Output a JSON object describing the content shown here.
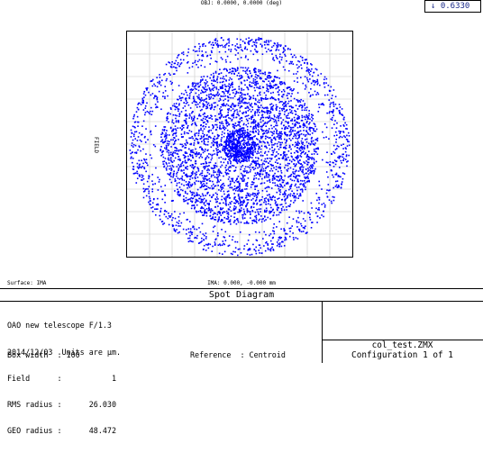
{
  "header": {
    "obj_label": "OBJ: 0.0000, 0.0000 (deg)",
    "wavelength": "0.6330",
    "wavelength_arrow": "↓"
  },
  "plot": {
    "field_axis_label": "FIELD",
    "surface_label": "Surface: IMA",
    "ima_label": "IMA: 0.000, -0.000 mm",
    "dot_color": "#0000ff",
    "grid_color": "#c8c8c8"
  },
  "footer": {
    "title": "Spot Diagram",
    "lines": [
      "OAO new telescope F/1.3",
      "2014/12/03  Units are µm.",
      "Field      :           1",
      "RMS radius :      26.030",
      "GEO radius :      48.472"
    ],
    "box_width": "Box width  : 100",
    "reference": "Reference  : Centroid",
    "filename": "col_test.ZMX",
    "configuration": "Configuration 1 of 1"
  }
}
